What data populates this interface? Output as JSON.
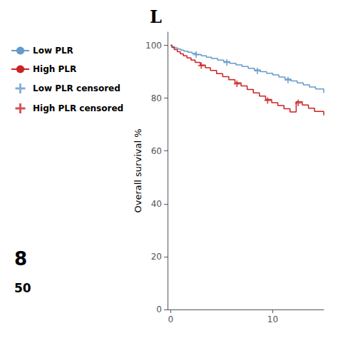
{
  "chart_data": {
    "type": "line",
    "title": "L",
    "ylabel": "Overall survival %",
    "xlim": [
      -0.3,
      15
    ],
    "ylim": [
      0,
      105
    ],
    "xticks": [
      0,
      10
    ],
    "yticks": [
      0,
      20,
      40,
      60,
      80,
      100
    ],
    "grid": false,
    "legend": "upper left",
    "annotations": [
      "8",
      "50"
    ],
    "series": [
      {
        "name": "Low PLR",
        "type": "step",
        "color": "#6699cc",
        "x": [
          0,
          0.15,
          0.4,
          0.7,
          1.0,
          1.3,
          1.7,
          2.1,
          2.5,
          3.0,
          3.5,
          4.0,
          4.6,
          5.2,
          5.8,
          6.4,
          7.0,
          7.6,
          8.2,
          8.8,
          9.4,
          10.0,
          10.6,
          11.2,
          11.8,
          12.4,
          13.0,
          13.6,
          14.2,
          15.0
        ],
        "values": [
          100,
          99.5,
          99.0,
          98.6,
          98.2,
          97.8,
          97.4,
          97.0,
          96.5,
          96.0,
          95.5,
          95.0,
          94.4,
          93.8,
          93.2,
          92.6,
          92.0,
          91.3,
          90.6,
          90.0,
          89.4,
          88.8,
          88.0,
          87.2,
          86.5,
          85.8,
          85.0,
          84.2,
          83.5,
          82.0
        ]
      },
      {
        "name": "High PLR",
        "type": "step",
        "color": "#cc2222",
        "x": [
          0,
          0.12,
          0.35,
          0.65,
          0.95,
          1.25,
          1.6,
          2.0,
          2.4,
          2.9,
          3.4,
          3.9,
          4.5,
          5.1,
          5.7,
          6.3,
          6.9,
          7.5,
          8.1,
          8.7,
          9.3,
          9.9,
          10.5,
          11.1,
          11.7,
          12.3,
          12.9,
          13.5,
          14.1,
          15.0
        ],
        "values": [
          100,
          99.2,
          98.4,
          97.6,
          96.8,
          96.0,
          95.2,
          94.4,
          93.5,
          92.5,
          91.5,
          90.5,
          89.3,
          88.1,
          87.0,
          85.8,
          84.6,
          83.3,
          82.0,
          80.8,
          79.5,
          78.3,
          77.2,
          76.0,
          74.8,
          78.6,
          77.4,
          76.2,
          75.0,
          73.5
        ]
      },
      {
        "name": "Low PLR censored",
        "type": "scatter",
        "marker": "plus",
        "color": "#6699cc",
        "x": [
          2.5,
          5.5,
          8.5,
          11.5
        ],
        "values": [
          96.5,
          93.5,
          90.3,
          86.85
        ]
      },
      {
        "name": "High PLR censored",
        "type": "scatter",
        "marker": "plus",
        "color": "#cc2222",
        "x": [
          3.0,
          6.5,
          9.5,
          12.5
        ],
        "values": [
          92.3,
          85.4,
          79.1,
          78.2
        ]
      }
    ]
  }
}
